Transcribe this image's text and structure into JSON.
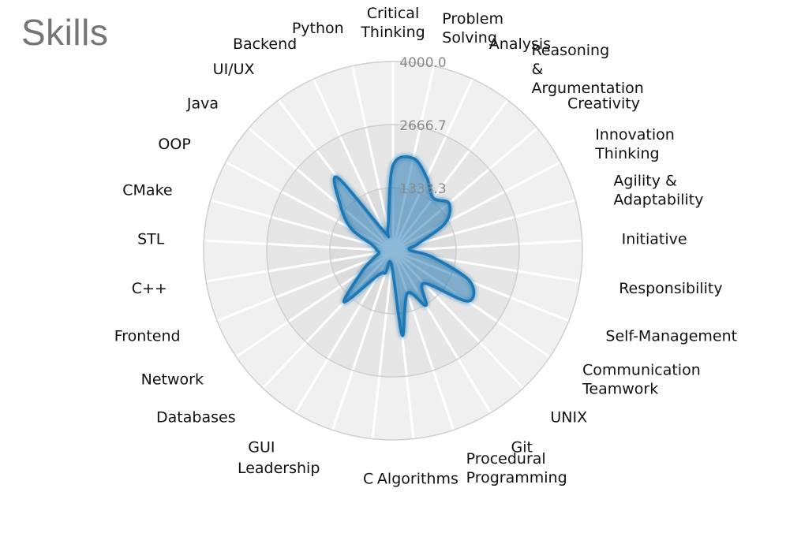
{
  "chart_data": {
    "type": "radar",
    "title": "Skills",
    "rticks": [
      "1333.3",
      "2666.7",
      "4000.0"
    ],
    "rlim": [
      0,
      4000
    ],
    "grid": true,
    "colors": {
      "line": "#1f77b4",
      "fill": "rgba(31,119,180,0.30)"
    },
    "axes": [
      {
        "label": [
          "Critical",
          "Thinking"
        ],
        "value": 1800
      },
      {
        "label": [
          "Problem",
          "Solving"
        ],
        "value": 2000
      },
      {
        "label": [
          "Analysis"
        ],
        "value": 1700
      },
      {
        "label": [
          "Reasoning",
          "&",
          "Argumentation"
        ],
        "value": 1400
      },
      {
        "label": [
          "Creativity"
        ],
        "value": 1550
      },
      {
        "label": [
          "Innovation",
          "Thinking"
        ],
        "value": 1250
      },
      {
        "label": [
          "Agility &",
          "Adaptability"
        ],
        "value": 550
      },
      {
        "label": [
          "Initiative"
        ],
        "value": 350
      },
      {
        "label": [
          "Responsibility"
        ],
        "value": 850
      },
      {
        "label": [
          "Self-Management"
        ],
        "value": 1750
      },
      {
        "label": [
          "Communication",
          "Teamwork"
        ],
        "value": 1900
      },
      {
        "label": [
          "UNIX"
        ],
        "value": 950
      },
      {
        "label": [
          "Git"
        ],
        "value": 1350
      },
      {
        "label": [
          "Procedural",
          "Programming"
        ],
        "value": 950
      },
      {
        "label": [
          "Algorithms"
        ],
        "value": 1800
      },
      {
        "label": [
          "C"
        ],
        "value": 300
      },
      {
        "label": [
          "Leadership"
        ],
        "value": 500
      },
      {
        "label": [
          "GUI"
        ],
        "value": 600
      },
      {
        "label": [
          "Databases"
        ],
        "value": 1500
      },
      {
        "label": [
          "Network"
        ],
        "value": 800
      },
      {
        "label": [
          "Frontend"
        ],
        "value": 450
      },
      {
        "label": [
          "C++"
        ],
        "value": 300
      },
      {
        "label": [
          "STL"
        ],
        "value": 350
      },
      {
        "label": [
          "CMake"
        ],
        "value": 450
      },
      {
        "label": [
          "OOP"
        ],
        "value": 1000
      },
      {
        "label": [
          "Java"
        ],
        "value": 1450
      },
      {
        "label": [
          "UI/UX"
        ],
        "value": 1950
      },
      {
        "label": [
          "Backend"
        ],
        "value": 450
      },
      {
        "label": [
          "Python"
        ],
        "value": 500
      }
    ]
  }
}
